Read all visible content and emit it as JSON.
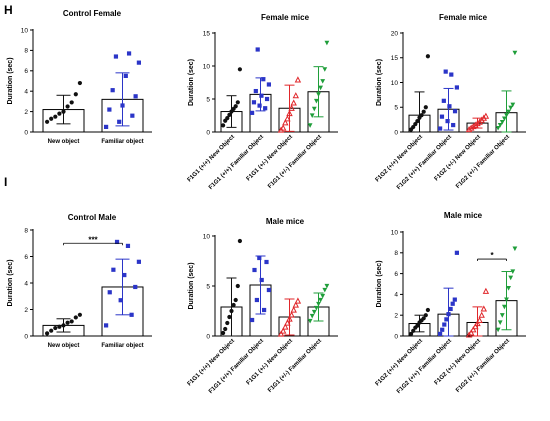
{
  "colors": {
    "black": "#111111",
    "blue": "#2b35c8",
    "red": "#e0262a",
    "green": "#1f9e3a"
  },
  "panel_letters": [
    "H",
    "I"
  ],
  "chart_data": [
    {
      "type": "bar",
      "title": "Control Female",
      "ylabel": "Duration (sec)",
      "ylim": [
        0,
        10
      ],
      "yticks": [
        "0",
        "2",
        "4",
        "6",
        "8",
        "10"
      ],
      "categories": [
        "New object",
        "Familiar object"
      ],
      "marker_colors": [
        "black",
        "blue"
      ],
      "markers": [
        "circle",
        "square"
      ],
      "means": [
        2.2,
        3.2
      ],
      "sd": [
        1.4,
        2.6
      ],
      "points": [
        [
          1.0,
          1.3,
          1.5,
          1.8,
          2.0,
          2.5,
          2.9,
          3.7,
          4.8
        ],
        [
          0.5,
          1.0,
          1.6,
          2.2,
          2.6,
          3.5,
          4.1,
          5.5,
          6.8,
          7.4,
          7.7
        ]
      ],
      "significance": []
    },
    {
      "type": "bar",
      "title": "Female mice",
      "ylabel": "Duration (sec)",
      "ylim": [
        0,
        15
      ],
      "yticks": [
        "0",
        "5",
        "10",
        "15"
      ],
      "categories": [
        "F1G1 (+/+) New Object",
        "F1G1 (+/+) Familiar Object",
        "F1G1 (+/-) New Object",
        "F1G1 (+/-) Familiar Object"
      ],
      "marker_colors": [
        "black",
        "blue",
        "red",
        "green"
      ],
      "markers": [
        "circle",
        "square",
        "triangle",
        "triangle-down"
      ],
      "means": [
        3.1,
        5.7,
        3.6,
        6.1
      ],
      "sd": [
        2.4,
        2.5,
        3.5,
        3.8
      ],
      "points": [
        [
          1.0,
          1.7,
          2.1,
          2.6,
          3.1,
          3.5,
          3.9,
          4.5,
          9.5
        ],
        [
          2.9,
          3.6,
          4.0,
          4.5,
          5.0,
          5.5,
          6.2,
          7.2,
          8.0,
          12.5
        ],
        [
          0.3,
          0.6,
          1.4,
          2.0,
          2.8,
          3.6,
          4.4,
          5.5,
          7.9
        ],
        [
          1.0,
          2.5,
          3.5,
          4.7,
          5.7,
          6.7,
          7.7,
          9.5,
          13.5
        ]
      ],
      "significance": []
    },
    {
      "type": "bar",
      "title": "Female mice",
      "ylabel": "Duration (sec)",
      "ylim": [
        0,
        20
      ],
      "yticks": [
        "0",
        "5",
        "10",
        "15",
        "20"
      ],
      "categories": [
        "F1G2 (+/+) New Object",
        "F1G2 (+/+) Familiar Object",
        "F1G2 (+/-) New Object",
        "F1G2 (+/-) Familiar Object"
      ],
      "marker_colors": [
        "black",
        "blue",
        "red",
        "green"
      ],
      "markers": [
        "circle",
        "square",
        "triangle",
        "triangle-down"
      ],
      "means": [
        3.4,
        4.6,
        1.8,
        3.9
      ],
      "sd": [
        4.7,
        4.2,
        1.0,
        4.4
      ],
      "points": [
        [
          0.5,
          1.0,
          1.6,
          2.2,
          2.9,
          3.4,
          4.1,
          5.0,
          15.3
        ],
        [
          0.7,
          1.4,
          2.2,
          3.1,
          4.2,
          5.2,
          6.3,
          9.0,
          11.6,
          12.2
        ],
        [
          0.5,
          0.8,
          1.1,
          1.4,
          1.7,
          2.0,
          2.4,
          2.8,
          3.2
        ],
        [
          0.8,
          1.4,
          2.0,
          2.7,
          3.4,
          4.1,
          4.9,
          5.5,
          16.0
        ]
      ],
      "significance": []
    },
    {
      "type": "bar",
      "title": "Control Male",
      "ylabel": "Duration (sec)",
      "ylim": [
        0,
        8
      ],
      "yticks": [
        "0",
        "2",
        "4",
        "6",
        "8"
      ],
      "categories": [
        "New object",
        "Familiar object"
      ],
      "marker_colors": [
        "black",
        "blue"
      ],
      "markers": [
        "circle",
        "square"
      ],
      "means": [
        0.8,
        3.7
      ],
      "sd": [
        0.5,
        2.1
      ],
      "points": [
        [
          0.2,
          0.4,
          0.6,
          0.7,
          0.8,
          1.0,
          1.1,
          1.4,
          1.6
        ],
        [
          0.8,
          1.6,
          2.7,
          3.3,
          3.7,
          4.6,
          5.0,
          5.6,
          6.8,
          7.1
        ]
      ],
      "significance": [
        {
          "from": 0,
          "to": 1,
          "y": 7.0,
          "label": "***"
        }
      ]
    },
    {
      "type": "bar",
      "title": "Male mice",
      "ylabel": "Duration (sec)",
      "ylim": [
        0,
        10
      ],
      "yticks": [
        "0",
        "5",
        "10"
      ],
      "categories": [
        "F1G1 (+/+) New Object",
        "F1G1 (+/+) Familiar Object",
        "F1G1 (+/-) New Object",
        "F1G1 (+/-) Familiar Object"
      ],
      "marker_colors": [
        "black",
        "blue",
        "red",
        "green"
      ],
      "markers": [
        "circle",
        "square",
        "triangle",
        "triangle-down"
      ],
      "means": [
        2.9,
        5.1,
        1.9,
        2.9
      ],
      "sd": [
        2.9,
        2.9,
        1.8,
        1.4
      ],
      "points": [
        [
          0.3,
          0.7,
          1.3,
          1.9,
          2.5,
          3.1,
          3.6,
          5.0,
          9.5
        ],
        [
          1.6,
          2.6,
          3.6,
          4.6,
          5.6,
          6.6,
          7.4,
          7.8
        ],
        [
          0.2,
          0.5,
          0.9,
          1.3,
          1.7,
          2.1,
          2.6,
          3.1,
          3.5
        ],
        [
          1.5,
          2.0,
          2.4,
          2.8,
          3.2,
          3.6,
          4.0,
          4.6,
          5.0
        ]
      ],
      "significance": []
    },
    {
      "type": "bar",
      "title": "Male mice",
      "ylabel": "Duration (sec)",
      "ylim": [
        0,
        10
      ],
      "yticks": [
        "0",
        "2",
        "4",
        "6",
        "8",
        "10"
      ],
      "categories": [
        "F1G2 (+/+) New Object",
        "F1G2 (+/+) Familiar Object",
        "F1G2 (+/-) New Object",
        "F1G2 (+/-) Familiar Object"
      ],
      "marker_colors": [
        "black",
        "blue",
        "red",
        "green"
      ],
      "markers": [
        "circle",
        "square",
        "triangle",
        "triangle-down"
      ],
      "means": [
        1.2,
        2.1,
        1.3,
        3.4
      ],
      "sd": [
        0.8,
        2.5,
        1.5,
        2.8
      ],
      "points": [
        [
          0.2,
          0.5,
          0.8,
          1.0,
          1.3,
          1.5,
          1.7,
          2.0,
          2.5
        ],
        [
          0.2,
          0.6,
          1.1,
          1.6,
          2.1,
          2.6,
          3.1,
          3.5,
          8.0
        ],
        [
          0.1,
          0.3,
          0.6,
          0.9,
          1.2,
          1.5,
          2.0,
          2.6,
          4.3
        ],
        [
          0.6,
          1.3,
          2.0,
          2.8,
          3.5,
          4.6,
          5.6,
          6.2,
          8.4
        ]
      ],
      "significance": [
        {
          "from": 2,
          "to": 3,
          "y": 7.4,
          "label": "*"
        }
      ]
    }
  ]
}
